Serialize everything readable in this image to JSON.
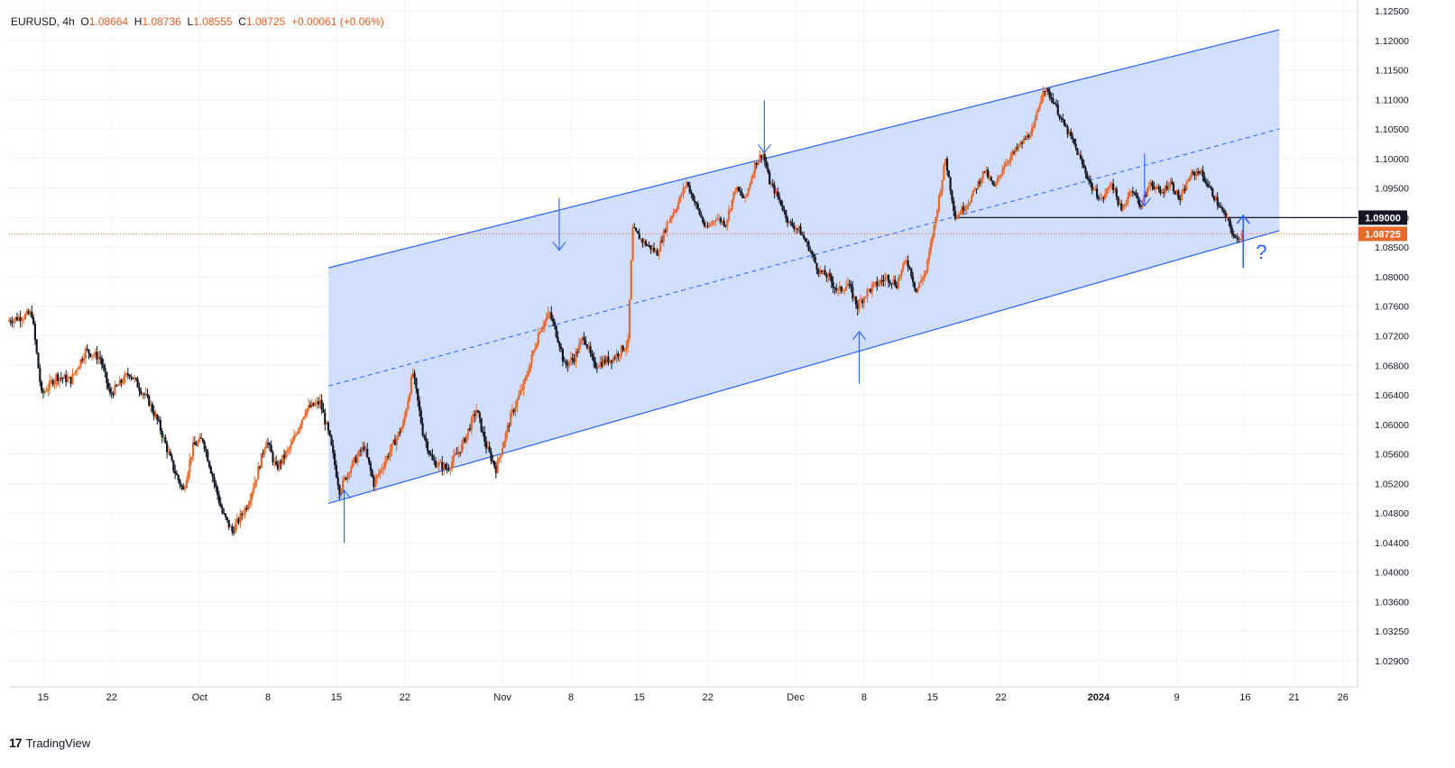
{
  "legend": {
    "symbol": "EURUSD",
    "interval": "4h",
    "open_label": "O",
    "open": "1.08664",
    "high_label": "H",
    "high": "1.08736",
    "low_label": "L",
    "low": "1.08555",
    "close_label": "C",
    "close": "1.08725",
    "change": "+0.00061 (+0.06%)"
  },
  "brand": {
    "logo": "17",
    "name": "TradingView"
  },
  "colors": {
    "up": "#e8692c",
    "down": "#131722",
    "channel_line": "#2962ff",
    "channel_fill": "#c9d8fb",
    "last_price": "#e8692c",
    "level": "#131722",
    "grid": "#f0f3fa",
    "axis_text": "#131722"
  },
  "chart_data": {
    "type": "candlestick",
    "symbol": "EURUSD",
    "timeframe": "4h",
    "y_ticks": [
      "1.12500",
      "1.12000",
      "1.11500",
      "1.11000",
      "1.10500",
      "1.10000",
      "1.09500",
      "1.09000",
      "1.08500",
      "1.08000",
      "1.07600",
      "1.07200",
      "1.06800",
      "1.06400",
      "1.06000",
      "1.05600",
      "1.05200",
      "1.04800",
      "1.04400",
      "1.04000",
      "1.03600",
      "1.03250",
      "1.02900"
    ],
    "x_ticks": [
      "15",
      "22",
      "Oct",
      "8",
      "15",
      "22",
      "Nov",
      "8",
      "15",
      "22",
      "Dec",
      "8",
      "15",
      "22",
      "2024",
      "9",
      "16",
      "21",
      "26"
    ],
    "x_tick_days": [
      -16,
      -9,
      0,
      7,
      14,
      21,
      31,
      38,
      45,
      52,
      61,
      68,
      75,
      82,
      92,
      100,
      107,
      112,
      117
    ],
    "x_range_days": [
      -19.5,
      118.5
    ],
    "last_price": {
      "value": "1.08725",
      "label": "1.08725"
    },
    "horizontal_level": {
      "value": "1.09000",
      "label": "1.09000",
      "from_day": 77.5
    },
    "channel": {
      "start_day": 13.2,
      "end_day": 110.5,
      "upper_start": 1.0815,
      "upper_end": 1.1218,
      "lower_start": 1.0493,
      "lower_end": 1.0878,
      "mid_start": 1.0652,
      "mid_end": 1.105
    },
    "arrows": [
      {
        "direction": "up",
        "day": 14.8,
        "value": 1.044
      },
      {
        "direction": "down",
        "day": 36.8,
        "value": 1.0845
      },
      {
        "direction": "down",
        "day": 57.8,
        "value": 1.101
      },
      {
        "direction": "up",
        "day": 67.5,
        "value": 1.0655
      },
      {
        "direction": "down",
        "day": 96.7,
        "value": 1.092
      },
      {
        "direction": "up",
        "day": 106.8,
        "value": 1.0815,
        "label": "?"
      }
    ],
    "price_path": [
      [
        -19.5,
        1.074
      ],
      [
        -17,
        1.075
      ],
      [
        -16,
        1.064
      ],
      [
        -14.5,
        1.0665
      ],
      [
        -13,
        1.066
      ],
      [
        -11.5,
        1.07
      ],
      [
        -10,
        1.069
      ],
      [
        -9,
        1.064
      ],
      [
        -7,
        1.067
      ],
      [
        -5,
        1.063
      ],
      [
        -4,
        1.06
      ],
      [
        -2.5,
        1.054
      ],
      [
        -1.5,
        1.051
      ],
      [
        -0.5,
        1.057
      ],
      [
        0.5,
        1.058
      ],
      [
        1.5,
        1.053
      ],
      [
        2.5,
        1.048
      ],
      [
        3.5,
        1.0455
      ],
      [
        5,
        1.049
      ],
      [
        6,
        1.053
      ],
      [
        7,
        1.058
      ],
      [
        8,
        1.054
      ],
      [
        9.5,
        1.057
      ],
      [
        11,
        1.062
      ],
      [
        12.5,
        1.063
      ],
      [
        13.5,
        1.058
      ],
      [
        14.5,
        1.051
      ],
      [
        15.5,
        1.054
      ],
      [
        17,
        1.057
      ],
      [
        18,
        1.052
      ],
      [
        19.5,
        1.056
      ],
      [
        21,
        1.06
      ],
      [
        22,
        1.067
      ],
      [
        23,
        1.059
      ],
      [
        24,
        1.055
      ],
      [
        25.5,
        1.054
      ],
      [
        27,
        1.057
      ],
      [
        28.5,
        1.062
      ],
      [
        29.5,
        1.057
      ],
      [
        30.5,
        1.054
      ],
      [
        32,
        1.061
      ],
      [
        33.5,
        1.066
      ],
      [
        35,
        1.073
      ],
      [
        36,
        1.075
      ],
      [
        37,
        1.071
      ],
      [
        37.5,
        1.068
      ],
      [
        38.5,
        1.069
      ],
      [
        39.5,
        1.072
      ],
      [
        40.5,
        1.068
      ],
      [
        42.5,
        1.069
      ],
      [
        44,
        1.071
      ],
      [
        44.5,
        1.088
      ],
      [
        45.5,
        1.086
      ],
      [
        47,
        1.084
      ],
      [
        48,
        1.089
      ],
      [
        49,
        1.092
      ],
      [
        50,
        1.096
      ],
      [
        51,
        1.092
      ],
      [
        52,
        1.088
      ],
      [
        53,
        1.09
      ],
      [
        54,
        1.089
      ],
      [
        55,
        1.095
      ],
      [
        56,
        1.093
      ],
      [
        57,
        1.099
      ],
      [
        57.8,
        1.101
      ],
      [
        58.5,
        1.096
      ],
      [
        59.5,
        1.093
      ],
      [
        60.5,
        1.089
      ],
      [
        61.5,
        1.088
      ],
      [
        62.5,
        1.085
      ],
      [
        63.5,
        1.081
      ],
      [
        64.5,
        1.08
      ],
      [
        65.5,
        1.078
      ],
      [
        66.5,
        1.079
      ],
      [
        67.5,
        1.076
      ],
      [
        68.5,
        1.078
      ],
      [
        69.5,
        1.079
      ],
      [
        70.5,
        1.08
      ],
      [
        71.5,
        1.079
      ],
      [
        72.5,
        1.083
      ],
      [
        73.5,
        1.078
      ],
      [
        74.5,
        1.081
      ],
      [
        75.5,
        1.09
      ],
      [
        76.5,
        1.1
      ],
      [
        77.5,
        1.09
      ],
      [
        79,
        1.093
      ],
      [
        80.5,
        1.098
      ],
      [
        81.5,
        1.095
      ],
      [
        82.5,
        1.099
      ],
      [
        84,
        1.102
      ],
      [
        85.5,
        1.105
      ],
      [
        86.5,
        1.112
      ],
      [
        87.5,
        1.11
      ],
      [
        88.5,
        1.106
      ],
      [
        89.5,
        1.103
      ],
      [
        90.5,
        1.099
      ],
      [
        91.5,
        1.095
      ],
      [
        92.5,
        1.093
      ],
      [
        93.5,
        1.096
      ],
      [
        94.5,
        1.091
      ],
      [
        95.5,
        1.095
      ],
      [
        96.5,
        1.092
      ],
      [
        97.5,
        1.096
      ],
      [
        98.5,
        1.094
      ],
      [
        99.5,
        1.096
      ],
      [
        100.5,
        1.093
      ],
      [
        101.5,
        1.097
      ],
      [
        102.5,
        1.098
      ],
      [
        103.5,
        1.095
      ],
      [
        104.5,
        1.092
      ],
      [
        105.5,
        1.089
      ],
      [
        106.2,
        1.086
      ],
      [
        106.8,
        1.0872
      ]
    ]
  }
}
